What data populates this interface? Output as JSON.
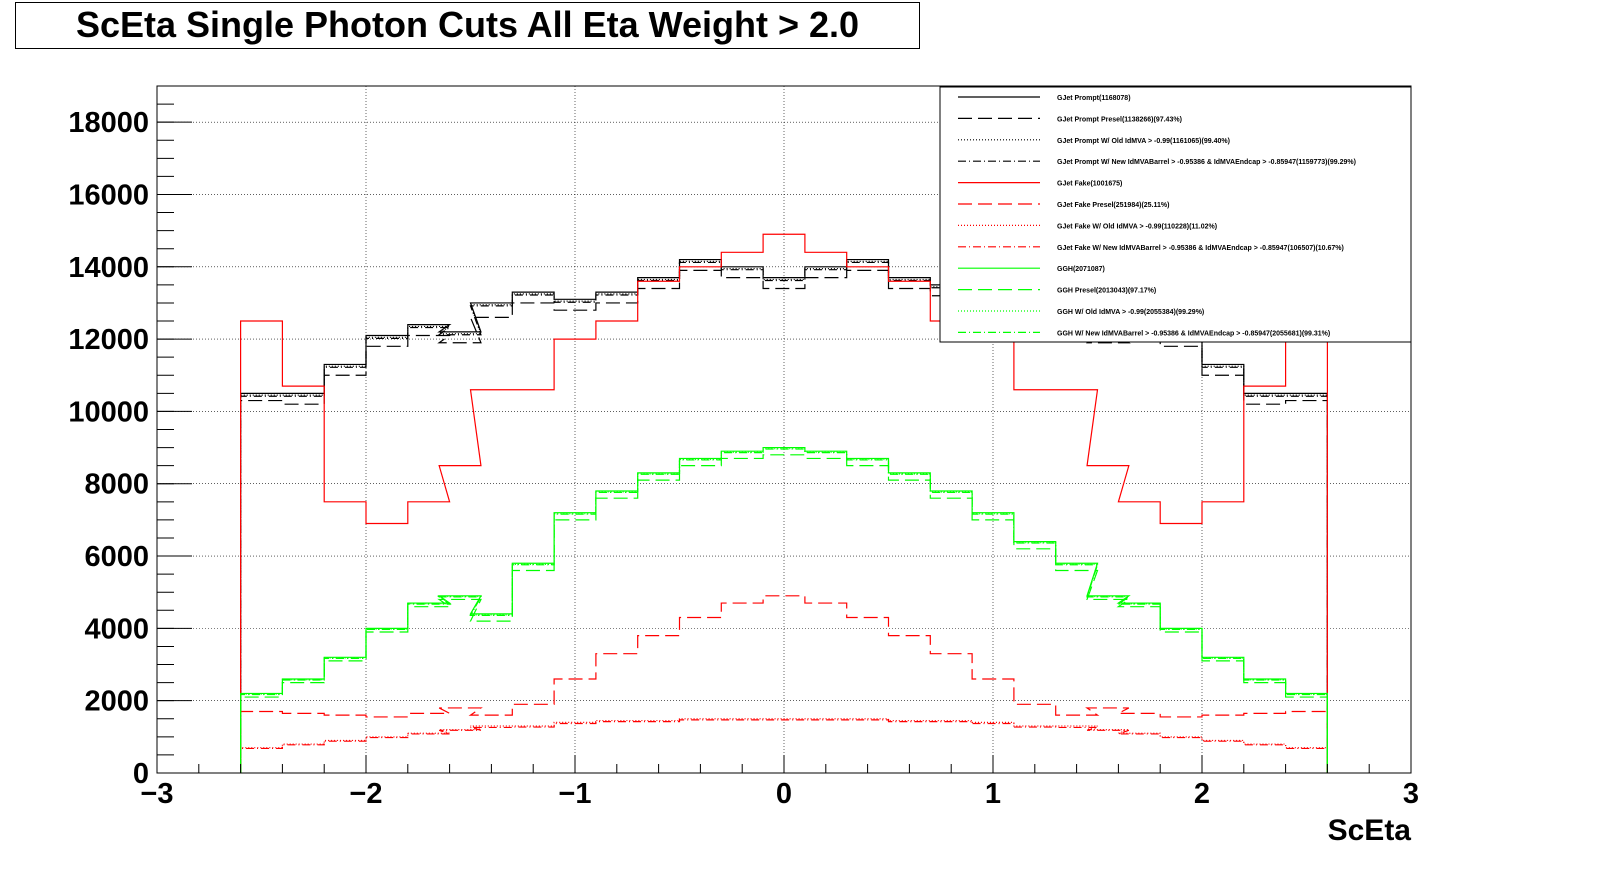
{
  "title": "ScEta Single Photon Cuts All Eta Weight > 2.0",
  "colors": {
    "black": "#000000",
    "red": "#ff0000",
    "green": "#00ff00"
  },
  "chart_data": {
    "type": "histogram",
    "title": "ScEta Single Photon Cuts All Eta Weight > 2.0",
    "xlabel": "ScEta",
    "ylabel": "",
    "xlim": [
      -3,
      3
    ],
    "ylim": [
      0,
      19000
    ],
    "x_ticks": [
      -3,
      -2,
      -1,
      0,
      1,
      2,
      3
    ],
    "x_tick_labels": [
      "−3",
      "−2",
      "−1",
      "0",
      "1",
      "2",
      "3"
    ],
    "y_ticks": [
      0,
      2000,
      4000,
      6000,
      8000,
      10000,
      12000,
      14000,
      16000,
      18000
    ],
    "y_tick_labels": [
      "0",
      "2000",
      "4000",
      "6000",
      "8000",
      "10000",
      "12000",
      "14000",
      "16000",
      "18000"
    ],
    "grid": true,
    "legend_position": "top-right",
    "x": [
      -2.5,
      -2.3,
      -2.1,
      -1.9,
      -1.7,
      -1.55,
      -1.4,
      -1.2,
      -1.0,
      -0.8,
      -0.6,
      -0.4,
      -0.2,
      0.0,
      0.2,
      0.4,
      0.6,
      0.8,
      1.0,
      1.2,
      1.4,
      1.55,
      1.7,
      1.9,
      2.1,
      2.3,
      2.5
    ],
    "series": [
      {
        "name": "GJet Prompt(1168078)",
        "color": "#000000",
        "dash": "solid",
        "values": [
          10500,
          10500,
          11300,
          12100,
          12400,
          12200,
          13000,
          13300,
          13100,
          13300,
          13700,
          14200,
          14000,
          13700,
          14000,
          14200,
          13700,
          13500,
          13100,
          13300,
          13000,
          12200,
          12400,
          12100,
          11300,
          10500,
          10500
        ]
      },
      {
        "name": "GJet Prompt Presel(1138266)(97.43%)",
        "color": "#000000",
        "dash": "longdash",
        "values": [
          10300,
          10200,
          11000,
          11800,
          12100,
          11900,
          12600,
          13000,
          12800,
          13000,
          13400,
          13900,
          13700,
          13400,
          13700,
          13900,
          13400,
          13200,
          12800,
          13000,
          12600,
          11900,
          12100,
          11800,
          11000,
          10200,
          10300
        ]
      },
      {
        "name": "GJet Prompt W/ Old IdMVA > -0.99(1161065)(99.40%)",
        "color": "#000000",
        "dash": "dot",
        "values": [
          10450,
          10450,
          11250,
          12050,
          12350,
          12150,
          12950,
          13250,
          13050,
          13250,
          13650,
          14150,
          13950,
          13650,
          13950,
          14150,
          13650,
          13450,
          13050,
          13250,
          12950,
          12150,
          12350,
          12050,
          11250,
          10450,
          10450
        ]
      },
      {
        "name": "GJet Prompt W/ New IdMVABarrel > -0.95386 & IdMVAEndcap > -0.85947(1159773)(99.29%)",
        "color": "#000000",
        "dash": "dashdot",
        "values": [
          10420,
          10420,
          11220,
          12020,
          12320,
          12120,
          12920,
          13220,
          13020,
          13220,
          13620,
          14120,
          13920,
          13620,
          13920,
          14120,
          13620,
          13420,
          13020,
          13220,
          12920,
          12120,
          12320,
          12020,
          11220,
          10420,
          10420
        ]
      },
      {
        "name": "GJet Fake(1001675)",
        "color": "#ff0000",
        "dash": "solid",
        "values": [
          12500,
          10700,
          7500,
          6900,
          7500,
          8500,
          10600,
          10600,
          12000,
          12500,
          13600,
          14000,
          14400,
          14900,
          14400,
          14000,
          13600,
          12500,
          12000,
          10600,
          10600,
          8500,
          7500,
          6900,
          7500,
          10700,
          12500
        ]
      },
      {
        "name": "GJet Fake Presel(251984)(25.11%)",
        "color": "#ff0000",
        "dash": "longdash",
        "values": [
          1700,
          1650,
          1600,
          1550,
          1650,
          1800,
          1600,
          1900,
          2600,
          3300,
          3800,
          4300,
          4700,
          4900,
          4700,
          4300,
          3800,
          3300,
          2600,
          1900,
          1600,
          1800,
          1650,
          1550,
          1600,
          1650,
          1700
        ]
      },
      {
        "name": "GJet Fake W/ Old IdMVA > -0.99(110228)(11.02%)",
        "color": "#ff0000",
        "dash": "dot",
        "values": [
          700,
          800,
          900,
          1000,
          1100,
          1200,
          1300,
          1300,
          1400,
          1450,
          1450,
          1500,
          1500,
          1500,
          1500,
          1500,
          1450,
          1450,
          1400,
          1300,
          1300,
          1200,
          1100,
          1000,
          900,
          800,
          700
        ]
      },
      {
        "name": "GJet Fake W/ New IdMVABarrel > -0.95386 & IdMVAEndcap > -0.85947(106507)(10.67%)",
        "color": "#ff0000",
        "dash": "dashdot",
        "values": [
          680,
          780,
          880,
          980,
          1080,
          1180,
          1260,
          1270,
          1370,
          1420,
          1420,
          1470,
          1470,
          1470,
          1470,
          1470,
          1420,
          1420,
          1370,
          1270,
          1260,
          1180,
          1080,
          980,
          880,
          780,
          680
        ]
      },
      {
        "name": "GGH(2071087)",
        "color": "#00ff00",
        "dash": "solid",
        "values": [
          2200,
          2600,
          3200,
          4000,
          4700,
          4900,
          4400,
          5800,
          7200,
          7800,
          8300,
          8700,
          8900,
          9000,
          8900,
          8700,
          8300,
          7800,
          7200,
          6400,
          5800,
          4900,
          4700,
          4000,
          3200,
          2600,
          2200
        ]
      },
      {
        "name": "GGH Presel(2013043)(97.17%)",
        "color": "#00ff00",
        "dash": "longdash",
        "values": [
          2100,
          2500,
          3100,
          3900,
          4600,
          4800,
          4200,
          5600,
          7000,
          7600,
          8100,
          8500,
          8700,
          8800,
          8700,
          8500,
          8100,
          7600,
          7000,
          6200,
          5600,
          4800,
          4600,
          3900,
          3100,
          2500,
          2100
        ]
      },
      {
        "name": "GGH W/ Old IdMVA > -0.99(2055384)(99.29%)",
        "color": "#00ff00",
        "dash": "dot",
        "values": [
          2180,
          2580,
          3180,
          3980,
          4680,
          4880,
          4370,
          5770,
          7170,
          7770,
          8270,
          8670,
          8870,
          8970,
          8870,
          8670,
          8270,
          7770,
          7170,
          6370,
          5770,
          4880,
          4680,
          3980,
          3180,
          2580,
          2180
        ]
      },
      {
        "name": "GGH W/ New IdMVABarrel > -0.95386 & IdMVAEndcap > -0.85947(2055681)(99.31%)",
        "color": "#00ff00",
        "dash": "dashdot",
        "values": [
          2170,
          2570,
          3170,
          3970,
          4670,
          4870,
          4360,
          5760,
          7160,
          7760,
          8260,
          8660,
          8860,
          8960,
          8860,
          8660,
          8260,
          7760,
          7160,
          6360,
          5760,
          4870,
          4670,
          3970,
          3170,
          2570,
          2170
        ]
      }
    ]
  }
}
